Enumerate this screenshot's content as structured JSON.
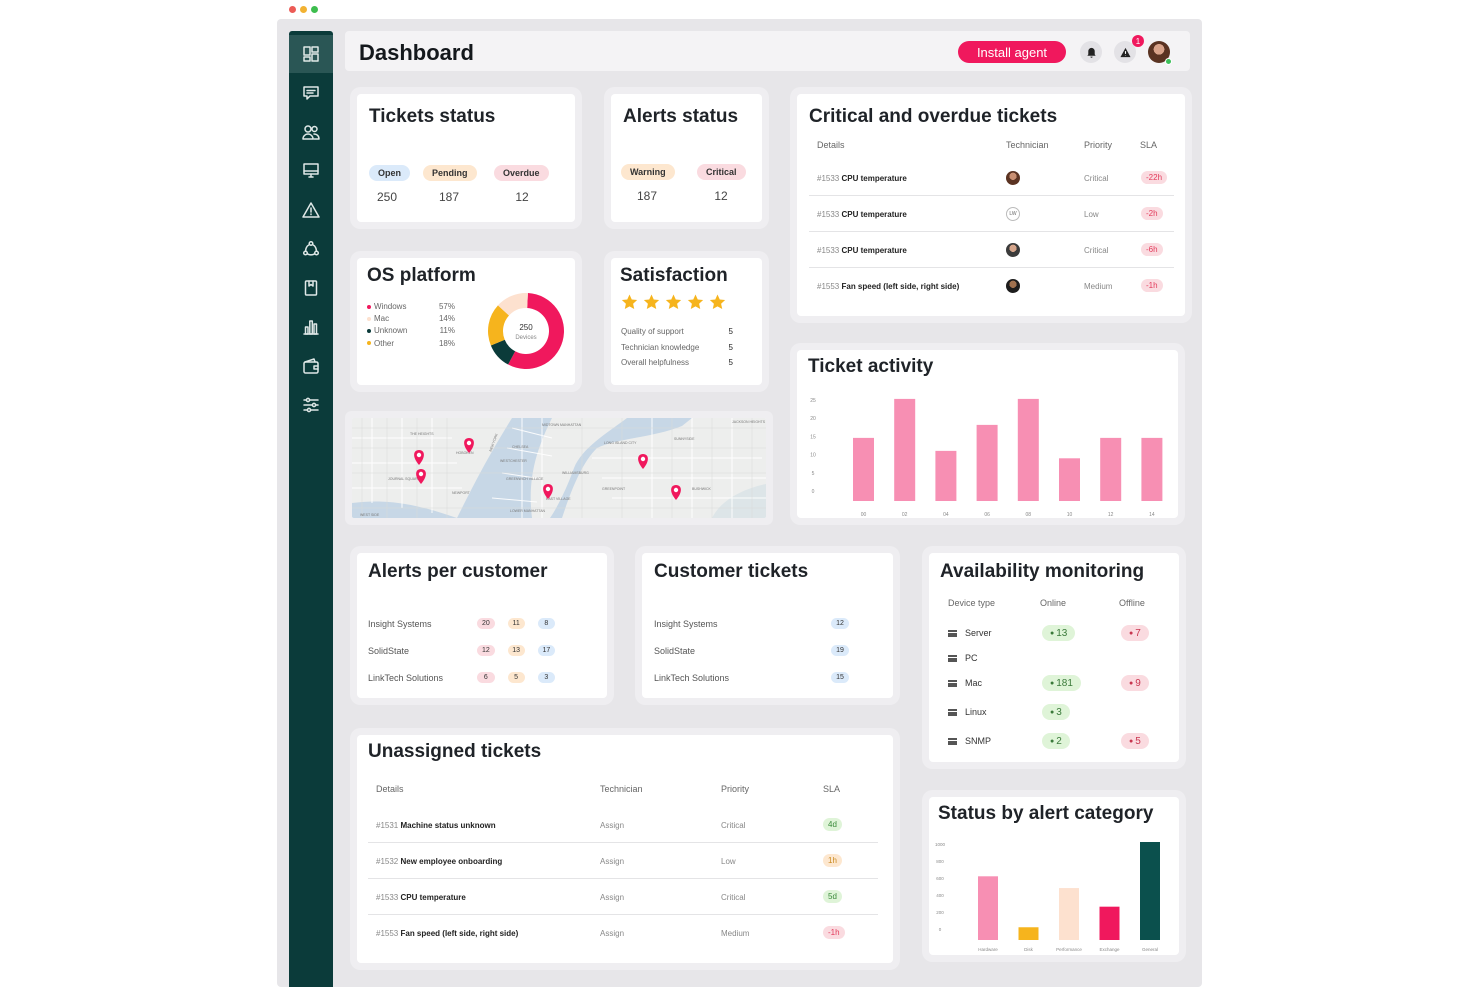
{
  "window": {
    "traffic_colors": [
      "#ec5b56",
      "#f2b232",
      "#3dbd4e"
    ]
  },
  "sidebar": {
    "items": [
      {
        "icon": "dashboard-grid-icon",
        "active": true
      },
      {
        "icon": "chat-icon",
        "active": false
      },
      {
        "icon": "users-icon",
        "active": false
      },
      {
        "icon": "monitor-icon",
        "active": false
      },
      {
        "icon": "warning-icon",
        "active": false
      },
      {
        "icon": "network-icon",
        "active": false
      },
      {
        "icon": "clipboard-icon",
        "active": false
      },
      {
        "icon": "bar-chart-icon",
        "active": false
      },
      {
        "icon": "wallet-icon",
        "active": false
      },
      {
        "icon": "sliders-icon",
        "active": false
      }
    ]
  },
  "header": {
    "title": "Dashboard",
    "install_label": "Install agent",
    "alert_badge": "1"
  },
  "tickets_status": {
    "title": "Tickets status",
    "items": [
      {
        "label": "Open",
        "value": "250",
        "color": "#dbeafa"
      },
      {
        "label": "Pending",
        "value": "187",
        "color": "#fde7cf"
      },
      {
        "label": "Overdue",
        "value": "12",
        "color": "#fadbe0"
      }
    ]
  },
  "alerts_status": {
    "title": "Alerts status",
    "items": [
      {
        "label": "Warning",
        "value": "187",
        "color": "#fde7cf"
      },
      {
        "label": "Critical",
        "value": "12",
        "color": "#fadbe0"
      }
    ]
  },
  "critical_tickets": {
    "title": "Critical and overdue tickets",
    "headers": {
      "details": "Details",
      "technician": "Technician",
      "priority": "Priority",
      "sla": "SLA"
    },
    "rows": [
      {
        "id": "#1533",
        "name": "CPU temperature",
        "priority": "Critical",
        "sla": "-22h"
      },
      {
        "id": "#1533",
        "name": "CPU temperature",
        "technician_initials": "LW",
        "priority": "Low",
        "sla": "-2h"
      },
      {
        "id": "#1533",
        "name": "CPU temperature",
        "priority": "Critical",
        "sla": "-6h"
      },
      {
        "id": "#1553",
        "name": "Fan speed (left side, right side)",
        "priority": "Medium",
        "sla": "-1h"
      }
    ]
  },
  "os_platform": {
    "title": "OS platform",
    "legend": [
      {
        "label": "Windows",
        "pct": "57%",
        "value": 57,
        "color": "#f0185d"
      },
      {
        "label": "Mac",
        "pct": "14%",
        "value": 14,
        "color": "#fde1cf"
      },
      {
        "label": "Unknown",
        "pct": "11%",
        "value": 11,
        "color": "#0b3b3a"
      },
      {
        "label": "Other",
        "pct": "18%",
        "value": 18,
        "color": "#f6b41d"
      }
    ],
    "center_value": "250",
    "center_label": "Devices"
  },
  "satisfaction": {
    "title": "Satisfaction",
    "stars": 5,
    "star_color": "#f6b41d",
    "rows": [
      {
        "label": "Quality of support",
        "value": "5"
      },
      {
        "label": "Technician knowledge",
        "value": "5"
      },
      {
        "label": "Overall helpfulness",
        "value": "5"
      }
    ]
  },
  "map": {
    "pin_color": "#f0185d",
    "labels": [
      "THE HEIGHTS",
      "HOBOKEN",
      "NEW YORK",
      "MIDTOWN MANHATTAN",
      "CHELSEA",
      "WESTCHESTER",
      "GREENWICH VILLAGE",
      "NEWPORT",
      "JOURNAL SQUARE",
      "WEST SIDE",
      "LOWER MANHATTAN",
      "EAST VILLAGE",
      "GREENPOINT",
      "WILLIAMSBURG",
      "BUSHWICK",
      "LONG ISLAND CITY",
      "SUNNYSIDE",
      "JACKSON HEIGHTS"
    ]
  },
  "ticket_activity": {
    "title": "Ticket activity"
  },
  "alerts_per_customer": {
    "title": "Alerts per customer",
    "rows": [
      {
        "name": "Insight Systems",
        "values": [
          "20",
          "11",
          "8"
        ]
      },
      {
        "name": "SolidState",
        "values": [
          "12",
          "13",
          "17"
        ]
      },
      {
        "name": "LinkTech Solutions",
        "values": [
          "6",
          "5",
          "3"
        ]
      }
    ],
    "colors": [
      "#fadbe0",
      "#fde7cf",
      "#dbeafa"
    ]
  },
  "customer_tickets": {
    "title": "Customer tickets",
    "rows": [
      {
        "name": "Insight Systems",
        "value": "12"
      },
      {
        "name": "SolidState",
        "value": "19"
      },
      {
        "name": "LinkTech Solutions",
        "value": "15"
      }
    ]
  },
  "availability": {
    "title": "Availability monitoring",
    "headers": {
      "device": "Device type",
      "online": "Online",
      "offline": "Offline"
    },
    "rows": [
      {
        "device": "Server",
        "online": "13",
        "offline": "7"
      },
      {
        "device": "PC",
        "online": "",
        "offline": ""
      },
      {
        "device": "Mac",
        "online": "181",
        "offline": "9"
      },
      {
        "device": "Linux",
        "online": "3",
        "offline": ""
      },
      {
        "device": "SNMP",
        "online": "2",
        "offline": "5"
      }
    ]
  },
  "unassigned": {
    "title": "Unassigned tickets",
    "headers": {
      "details": "Details",
      "technician": "Technician",
      "priority": "Priority",
      "sla": "SLA"
    },
    "rows": [
      {
        "id": "#1531",
        "name": "Machine status unknown",
        "technician": "Assign",
        "priority": "Critical",
        "sla": "4d",
        "sla_color": "#dff4d8"
      },
      {
        "id": "#1532",
        "name": "New employee onboarding",
        "technician": "Assign",
        "priority": "Low",
        "sla": "1h",
        "sla_color": "#fde7cf"
      },
      {
        "id": "#1533",
        "name": "CPU temperature",
        "technician": "Assign",
        "priority": "Critical",
        "sla": "5d",
        "sla_color": "#dff4d8"
      },
      {
        "id": "#1553",
        "name": "Fan speed (left side, right side)",
        "technician": "Assign",
        "priority": "Medium",
        "sla": "-1h",
        "sla_color": "#fadbe0"
      }
    ]
  },
  "status_by_alert": {
    "title": "Status by alert category"
  },
  "chart_data": [
    {
      "type": "bar",
      "title": "Ticket activity",
      "categories": [
        "00",
        "02",
        "04",
        "06",
        "08",
        "10",
        "12",
        "14"
      ],
      "values": [
        17,
        27.5,
        13.5,
        20.5,
        27.5,
        11.5,
        17,
        17
      ],
      "ylim": [
        0,
        25
      ],
      "yticks": [
        "25",
        "20",
        "15",
        "10",
        "5",
        "0"
      ],
      "color": "#f78fb3"
    },
    {
      "type": "bar",
      "title": "Status by alert category",
      "categories": [
        "Hardware",
        "Disk",
        "Performance",
        "Exchange",
        "General"
      ],
      "values": [
        650,
        130,
        530,
        340,
        1000
      ],
      "colors": [
        "#f78fb3",
        "#f6b41d",
        "#fde1cf",
        "#f0185d",
        "#0b504d"
      ],
      "ylim": [
        0,
        1000
      ],
      "yticks": [
        "1000",
        "800",
        "600",
        "400",
        "200",
        "0"
      ]
    },
    {
      "type": "pie",
      "title": "OS platform",
      "categories": [
        "Windows",
        "Mac",
        "Unknown",
        "Other"
      ],
      "values": [
        57,
        14,
        11,
        18
      ]
    }
  ]
}
